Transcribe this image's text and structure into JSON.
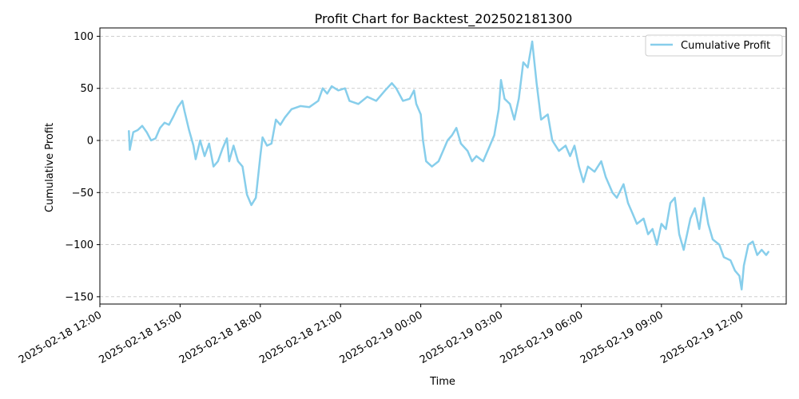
{
  "chart_data": {
    "type": "line",
    "title": "Profit Chart for Backtest_202502181300",
    "xlabel": "Time",
    "ylabel": "Cumulative Profit",
    "xlim": [
      "2025-02-18 12:00",
      "2025-02-19 13:40"
    ],
    "ylim": [
      -157,
      108
    ],
    "x_tick_labels": [
      "2025-02-18 12:00",
      "2025-02-18 15:00",
      "2025-02-18 18:00",
      "2025-02-18 21:00",
      "2025-02-19 00:00",
      "2025-02-19 03:00",
      "2025-02-19 06:00",
      "2025-02-19 09:00",
      "2025-02-19 12:00"
    ],
    "y_ticks": [
      100,
      50,
      0,
      -50,
      -100,
      -150
    ],
    "grid": "horizontal dashed",
    "legend_position": "top-right",
    "series": [
      {
        "name": "Cumulative Profit",
        "color": "#87ceeb",
        "points": [
          [
            "2025-02-18 13:05",
            9
          ],
          [
            "2025-02-18 13:07",
            -9
          ],
          [
            "2025-02-18 13:15",
            8
          ],
          [
            "2025-02-18 13:25",
            10
          ],
          [
            "2025-02-18 13:35",
            14
          ],
          [
            "2025-02-18 13:45",
            8
          ],
          [
            "2025-02-18 13:55",
            0
          ],
          [
            "2025-02-18 14:05",
            2
          ],
          [
            "2025-02-18 14:15",
            12
          ],
          [
            "2025-02-18 14:25",
            17
          ],
          [
            "2025-02-18 14:35",
            15
          ],
          [
            "2025-02-18 14:45",
            23
          ],
          [
            "2025-02-18 14:55",
            32
          ],
          [
            "2025-02-18 15:05",
            38
          ],
          [
            "2025-02-18 15:10",
            28
          ],
          [
            "2025-02-18 15:20",
            10
          ],
          [
            "2025-02-18 15:30",
            -5
          ],
          [
            "2025-02-18 15:35",
            -18
          ],
          [
            "2025-02-18 15:45",
            0
          ],
          [
            "2025-02-18 15:55",
            -15
          ],
          [
            "2025-02-18 16:05",
            -3
          ],
          [
            "2025-02-18 16:15",
            -25
          ],
          [
            "2025-02-18 16:25",
            -20
          ],
          [
            "2025-02-18 16:35",
            -8
          ],
          [
            "2025-02-18 16:45",
            2
          ],
          [
            "2025-02-18 16:50",
            -20
          ],
          [
            "2025-02-18 17:00",
            -5
          ],
          [
            "2025-02-18 17:10",
            -20
          ],
          [
            "2025-02-18 17:20",
            -25
          ],
          [
            "2025-02-18 17:30",
            -52
          ],
          [
            "2025-02-18 17:40",
            -62
          ],
          [
            "2025-02-18 17:50",
            -55
          ],
          [
            "2025-02-18 18:00",
            -15
          ],
          [
            "2025-02-18 18:05",
            3
          ],
          [
            "2025-02-18 18:15",
            -5
          ],
          [
            "2025-02-18 18:25",
            -3
          ],
          [
            "2025-02-18 18:35",
            20
          ],
          [
            "2025-02-18 18:45",
            15
          ],
          [
            "2025-02-18 18:55",
            22
          ],
          [
            "2025-02-18 19:10",
            30
          ],
          [
            "2025-02-18 19:30",
            33
          ],
          [
            "2025-02-18 19:50",
            32
          ],
          [
            "2025-02-18 20:10",
            38
          ],
          [
            "2025-02-18 20:20",
            50
          ],
          [
            "2025-02-18 20:30",
            45
          ],
          [
            "2025-02-18 20:40",
            52
          ],
          [
            "2025-02-18 20:55",
            48
          ],
          [
            "2025-02-18 21:10",
            50
          ],
          [
            "2025-02-18 21:20",
            38
          ],
          [
            "2025-02-18 21:40",
            35
          ],
          [
            "2025-02-18 22:00",
            42
          ],
          [
            "2025-02-18 22:20",
            38
          ],
          [
            "2025-02-18 22:40",
            48
          ],
          [
            "2025-02-18 22:55",
            55
          ],
          [
            "2025-02-18 23:05",
            50
          ],
          [
            "2025-02-18 23:20",
            38
          ],
          [
            "2025-02-18 23:35",
            40
          ],
          [
            "2025-02-18 23:45",
            48
          ],
          [
            "2025-02-18 23:50",
            35
          ],
          [
            "2025-02-19 00:00",
            25
          ],
          [
            "2025-02-19 00:05",
            0
          ],
          [
            "2025-02-19 00:12",
            -20
          ],
          [
            "2025-02-19 00:25",
            -25
          ],
          [
            "2025-02-19 00:40",
            -20
          ],
          [
            "2025-02-19 00:50",
            -10
          ],
          [
            "2025-02-19 01:00",
            0
          ],
          [
            "2025-02-19 01:10",
            5
          ],
          [
            "2025-02-19 01:20",
            12
          ],
          [
            "2025-02-19 01:30",
            -3
          ],
          [
            "2025-02-19 01:45",
            -10
          ],
          [
            "2025-02-19 01:55",
            -20
          ],
          [
            "2025-02-19 02:05",
            -15
          ],
          [
            "2025-02-19 02:20",
            -20
          ],
          [
            "2025-02-19 02:35",
            -5
          ],
          [
            "2025-02-19 02:45",
            5
          ],
          [
            "2025-02-19 02:55",
            30
          ],
          [
            "2025-02-19 03:00",
            58
          ],
          [
            "2025-02-19 03:08",
            40
          ],
          [
            "2025-02-19 03:20",
            35
          ],
          [
            "2025-02-19 03:30",
            20
          ],
          [
            "2025-02-19 03:40",
            40
          ],
          [
            "2025-02-19 03:50",
            75
          ],
          [
            "2025-02-19 04:00",
            70
          ],
          [
            "2025-02-19 04:10",
            95
          ],
          [
            "2025-02-19 04:20",
            55
          ],
          [
            "2025-02-19 04:30",
            20
          ],
          [
            "2025-02-19 04:45",
            25
          ],
          [
            "2025-02-19 04:55",
            0
          ],
          [
            "2025-02-19 05:10",
            -10
          ],
          [
            "2025-02-19 05:25",
            -5
          ],
          [
            "2025-02-19 05:35",
            -15
          ],
          [
            "2025-02-19 05:45",
            -5
          ],
          [
            "2025-02-19 05:55",
            -25
          ],
          [
            "2025-02-19 06:05",
            -40
          ],
          [
            "2025-02-19 06:15",
            -25
          ],
          [
            "2025-02-19 06:30",
            -30
          ],
          [
            "2025-02-19 06:45",
            -20
          ],
          [
            "2025-02-19 06:55",
            -35
          ],
          [
            "2025-02-19 07:10",
            -50
          ],
          [
            "2025-02-19 07:20",
            -55
          ],
          [
            "2025-02-19 07:35",
            -42
          ],
          [
            "2025-02-19 07:45",
            -60
          ],
          [
            "2025-02-19 07:55",
            -70
          ],
          [
            "2025-02-19 08:05",
            -80
          ],
          [
            "2025-02-19 08:20",
            -75
          ],
          [
            "2025-02-19 08:30",
            -90
          ],
          [
            "2025-02-19 08:40",
            -85
          ],
          [
            "2025-02-19 08:50",
            -100
          ],
          [
            "2025-02-19 09:00",
            -80
          ],
          [
            "2025-02-19 09:10",
            -85
          ],
          [
            "2025-02-19 09:20",
            -60
          ],
          [
            "2025-02-19 09:30",
            -55
          ],
          [
            "2025-02-19 09:40",
            -90
          ],
          [
            "2025-02-19 09:50",
            -105
          ],
          [
            "2025-02-19 10:05",
            -75
          ],
          [
            "2025-02-19 10:15",
            -65
          ],
          [
            "2025-02-19 10:25",
            -85
          ],
          [
            "2025-02-19 10:35",
            -55
          ],
          [
            "2025-02-19 10:45",
            -80
          ],
          [
            "2025-02-19 10:55",
            -95
          ],
          [
            "2025-02-19 11:10",
            -100
          ],
          [
            "2025-02-19 11:20",
            -112
          ],
          [
            "2025-02-19 11:35",
            -115
          ],
          [
            "2025-02-19 11:45",
            -125
          ],
          [
            "2025-02-19 11:55",
            -130
          ],
          [
            "2025-02-19 12:00",
            -143
          ],
          [
            "2025-02-19 12:05",
            -120
          ],
          [
            "2025-02-19 12:15",
            -100
          ],
          [
            "2025-02-19 12:25",
            -97
          ],
          [
            "2025-02-19 12:35",
            -110
          ],
          [
            "2025-02-19 12:45",
            -105
          ],
          [
            "2025-02-19 12:55",
            -110
          ],
          [
            "2025-02-19 13:00",
            -107
          ]
        ]
      }
    ]
  }
}
